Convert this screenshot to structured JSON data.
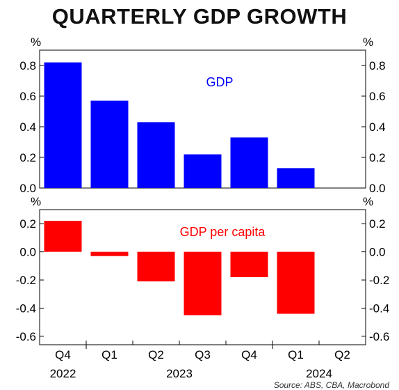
{
  "title": "QUARTERLY GDP GROWTH",
  "source": "Source: ABS, CBA, Macrobond",
  "chart_data": [
    {
      "type": "bar",
      "unit_left": "%",
      "unit_right": "%",
      "categories": [
        "Q4",
        "Q1",
        "Q2",
        "Q3",
        "Q4",
        "Q1",
        "Q2"
      ],
      "values": [
        0.82,
        0.57,
        0.43,
        0.22,
        0.33,
        0.13,
        null
      ],
      "series": [
        {
          "name": "GDP",
          "values": [
            0.82,
            0.57,
            0.43,
            0.22,
            0.33,
            0.13,
            null
          ]
        }
      ],
      "annotation": "GDP",
      "ylim": [
        0,
        0.9
      ],
      "yticks": [
        "0.0",
        "0.2",
        "0.4",
        "0.6",
        "0.8"
      ],
      "ytick_values": [
        0,
        0.2,
        0.4,
        0.6,
        0.8
      ],
      "color": "#0000ff"
    },
    {
      "type": "bar",
      "unit_left": "%",
      "unit_right": "%",
      "categories": [
        "Q4",
        "Q1",
        "Q2",
        "Q3",
        "Q4",
        "Q1",
        "Q2"
      ],
      "values": [
        0.22,
        -0.03,
        -0.21,
        -0.45,
        -0.18,
        -0.44,
        null
      ],
      "series": [
        {
          "name": "GDP per capita",
          "values": [
            0.22,
            -0.03,
            -0.21,
            -0.45,
            -0.18,
            -0.44,
            null
          ]
        }
      ],
      "annotation": "GDP per capita",
      "ylim": [
        -0.66,
        0.3
      ],
      "yticks": [
        "0.2",
        "0.0",
        "-0.2",
        "-0.4",
        "-0.6"
      ],
      "ytick_values": [
        0.2,
        0,
        -0.2,
        -0.4,
        -0.6
      ],
      "color": "#ff0000"
    }
  ],
  "x_axis": {
    "quarters": [
      "Q4",
      "Q1",
      "Q2",
      "Q3",
      "Q4",
      "Q1",
      "Q2"
    ],
    "years": [
      {
        "label": "2022",
        "start": 0,
        "end": 0
      },
      {
        "label": "2023",
        "start": 1,
        "end": 4
      },
      {
        "label": "2024",
        "start": 5,
        "end": 6
      }
    ]
  }
}
